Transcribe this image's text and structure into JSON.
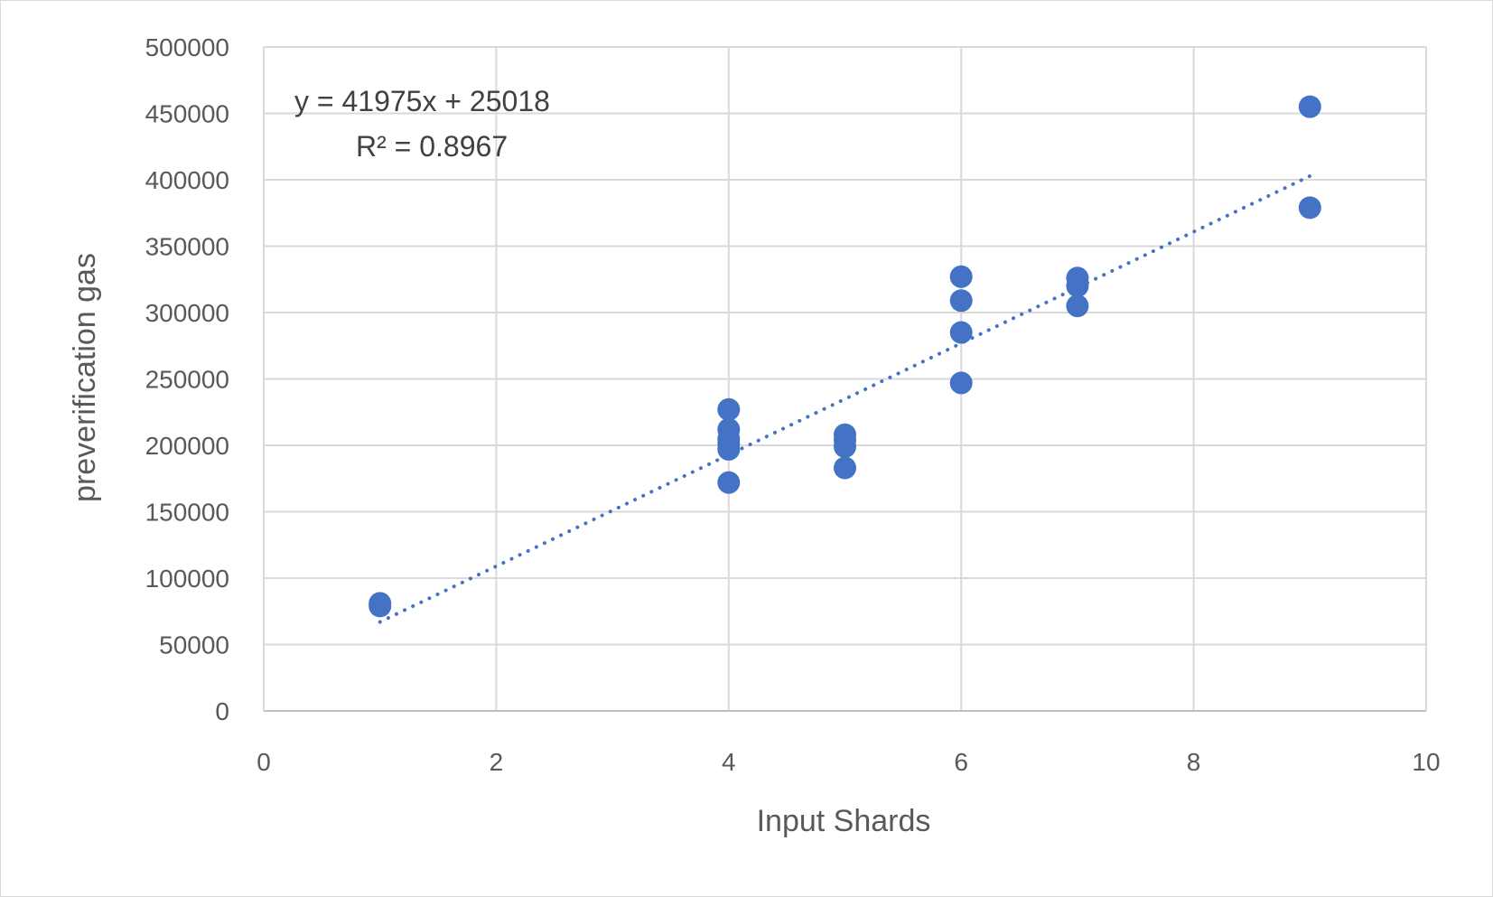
{
  "chart_data": {
    "type": "scatter",
    "title": "",
    "xlabel": "Input Shards",
    "ylabel": "preverification gas",
    "xlim": [
      0,
      10
    ],
    "ylim": [
      0,
      500000
    ],
    "x_ticks": [
      0,
      2,
      4,
      6,
      8,
      10
    ],
    "y_ticks": [
      0,
      50000,
      100000,
      150000,
      200000,
      250000,
      300000,
      350000,
      400000,
      450000,
      500000
    ],
    "grid": true,
    "legend": "none",
    "marker_color": "#4472C4",
    "trendline_color": "#4472C4",
    "points": [
      {
        "x": 1,
        "y": 79000
      },
      {
        "x": 1,
        "y": 81000
      },
      {
        "x": 4,
        "y": 227000
      },
      {
        "x": 4,
        "y": 212000
      },
      {
        "x": 4,
        "y": 205000
      },
      {
        "x": 4,
        "y": 201000
      },
      {
        "x": 4,
        "y": 197000
      },
      {
        "x": 4,
        "y": 172000
      },
      {
        "x": 5,
        "y": 208000
      },
      {
        "x": 5,
        "y": 204000
      },
      {
        "x": 5,
        "y": 199000
      },
      {
        "x": 5,
        "y": 183000
      },
      {
        "x": 6,
        "y": 327000
      },
      {
        "x": 6,
        "y": 309000
      },
      {
        "x": 6,
        "y": 285000
      },
      {
        "x": 6,
        "y": 247000
      },
      {
        "x": 7,
        "y": 326000
      },
      {
        "x": 7,
        "y": 320000
      },
      {
        "x": 7,
        "y": 305000
      },
      {
        "x": 9,
        "y": 455000
      },
      {
        "x": 9,
        "y": 379000
      }
    ],
    "trendline": {
      "type": "linear",
      "slope": 41975,
      "intercept": 25018,
      "x_range": [
        1,
        9
      ],
      "style": "dotted"
    },
    "annotations": {
      "equation": "y = 41975x + 25018",
      "r_squared": "R² = 0.8967"
    }
  }
}
